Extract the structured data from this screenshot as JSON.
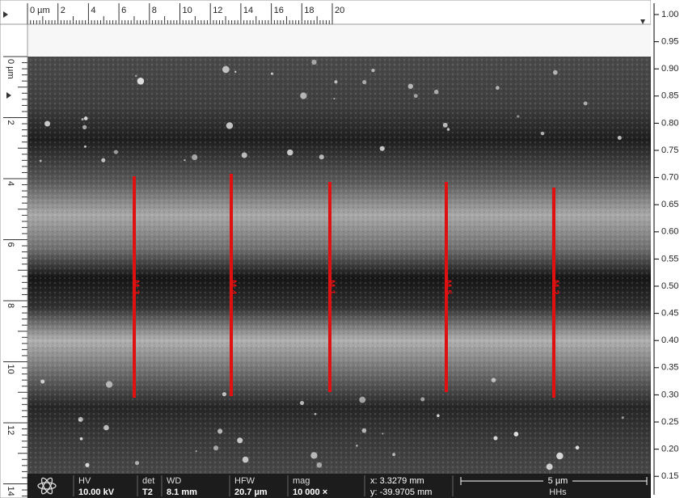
{
  "ruler_top": {
    "labels": [
      "0 µm",
      "2",
      "4",
      "6",
      "8",
      "10",
      "12",
      "14",
      "16",
      "18",
      "20"
    ]
  },
  "ruler_left": {
    "labels": [
      "0 µm",
      "2",
      "4",
      "6",
      "8",
      "10",
      "12",
      "14"
    ]
  },
  "scale_right": {
    "labels": [
      "1.00",
      "0.95",
      "0.90",
      "0.85",
      "0.80",
      "0.75",
      "0.70",
      "0.65",
      "0.60",
      "0.55",
      "0.50",
      "0.45",
      "0.40",
      "0.35",
      "0.30",
      "0.25",
      "0.20",
      "0.15"
    ]
  },
  "measurements": [
    "M 3",
    "M 4",
    "M 1",
    "M 5",
    "M 2"
  ],
  "info_bar": {
    "fields": [
      {
        "label": "HV",
        "value": "10.00 kV"
      },
      {
        "label": "det",
        "value": "T2"
      },
      {
        "label": "WD",
        "value": "8.1 mm"
      },
      {
        "label": "HFW",
        "value": "20.7 µm"
      },
      {
        "label": "mag",
        "value": "10 000 ×"
      }
    ],
    "x": "x: 3.3279 mm",
    "y": "y: -39.9705 mm",
    "scale_bar": "5 µm",
    "operator": "HHs"
  }
}
